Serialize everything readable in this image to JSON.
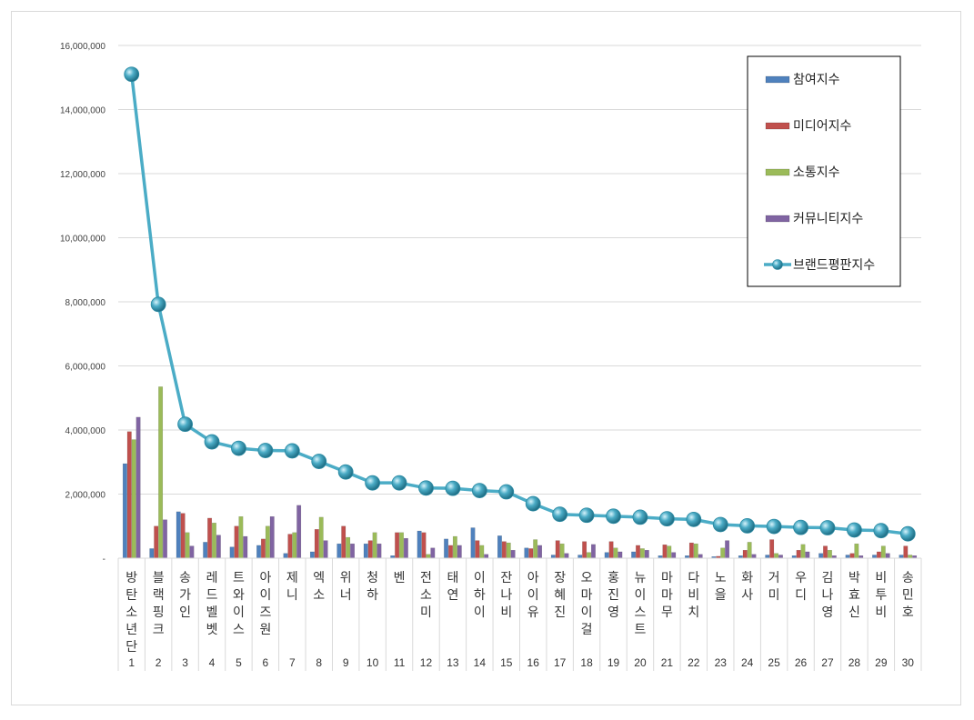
{
  "chart_data": {
    "type": "bar",
    "title": "",
    "xlabel": "",
    "ylabel": "",
    "ylim": [
      0,
      16000000
    ],
    "yticks": [
      {
        "value": 0,
        "label": "-"
      },
      {
        "value": 2000000,
        "label": "2,000,000"
      },
      {
        "value": 4000000,
        "label": "4,000,000"
      },
      {
        "value": 6000000,
        "label": "6,000,000"
      },
      {
        "value": 8000000,
        "label": "8,000,000"
      },
      {
        "value": 10000000,
        "label": "10,000,000"
      },
      {
        "value": 12000000,
        "label": "12,000,000"
      },
      {
        "value": 14000000,
        "label": "14,000,000"
      },
      {
        "value": 16000000,
        "label": "16,000,000"
      }
    ],
    "grid": true,
    "legend_position": "top-right",
    "categories": [
      "방탄소년단",
      "블랙핑크",
      "송가인",
      "레드벨벳",
      "트와이스",
      "아이즈원",
      "제니",
      "엑소",
      "위너",
      "청하",
      "벤",
      "전소미",
      "태연",
      "이하이",
      "잔나비",
      "아이유",
      "장혜진",
      "오마이걸",
      "홍진영",
      "뉴이스트",
      "마마무",
      "다비치",
      "노을",
      "화사",
      "거미",
      "우디",
      "김나영",
      "박효신",
      "비투비",
      "송민호"
    ],
    "ranks": [
      "1",
      "2",
      "3",
      "4",
      "5",
      "6",
      "7",
      "8",
      "9",
      "10",
      "11",
      "12",
      "13",
      "14",
      "15",
      "16",
      "17",
      "18",
      "19",
      "20",
      "21",
      "22",
      "23",
      "24",
      "25",
      "26",
      "27",
      "28",
      "29",
      "30"
    ],
    "series": [
      {
        "name": "참여지수",
        "kind": "bar",
        "color": "#4f81bd",
        "values": [
          2950000,
          300000,
          1450000,
          500000,
          350000,
          400000,
          150000,
          200000,
          450000,
          450000,
          80000,
          850000,
          600000,
          950000,
          700000,
          320000,
          100000,
          100000,
          180000,
          200000,
          80000,
          80000,
          50000,
          80000,
          100000,
          80000,
          150000,
          100000,
          100000,
          100000
        ]
      },
      {
        "name": "미디어지수",
        "kind": "bar",
        "color": "#c0504d",
        "values": [
          3950000,
          1000000,
          1400000,
          1250000,
          1000000,
          600000,
          750000,
          900000,
          1000000,
          550000,
          800000,
          800000,
          400000,
          550000,
          520000,
          300000,
          550000,
          520000,
          520000,
          400000,
          420000,
          480000,
          60000,
          250000,
          580000,
          250000,
          380000,
          150000,
          200000,
          380000
        ]
      },
      {
        "name": "소통지수",
        "kind": "bar",
        "color": "#9bbb59",
        "values": [
          3700000,
          5350000,
          800000,
          1100000,
          1300000,
          1000000,
          800000,
          1280000,
          650000,
          800000,
          800000,
          120000,
          680000,
          400000,
          480000,
          580000,
          450000,
          180000,
          320000,
          300000,
          380000,
          450000,
          320000,
          500000,
          150000,
          430000,
          250000,
          450000,
          380000,
          100000
        ]
      },
      {
        "name": "커뮤니티지수",
        "kind": "bar",
        "color": "#8064a2",
        "values": [
          4400000,
          1200000,
          380000,
          720000,
          680000,
          1300000,
          1650000,
          550000,
          450000,
          450000,
          620000,
          320000,
          400000,
          120000,
          250000,
          400000,
          150000,
          430000,
          200000,
          250000,
          180000,
          120000,
          550000,
          120000,
          100000,
          200000,
          80000,
          80000,
          150000,
          80000
        ]
      },
      {
        "name": "브랜드평판지수",
        "kind": "line",
        "color": "#4bacc6",
        "values": [
          15100000,
          7920000,
          4180000,
          3630000,
          3430000,
          3360000,
          3350000,
          3020000,
          2690000,
          2350000,
          2350000,
          2190000,
          2180000,
          2110000,
          2070000,
          1700000,
          1370000,
          1340000,
          1310000,
          1280000,
          1230000,
          1210000,
          1050000,
          1010000,
          990000,
          960000,
          950000,
          880000,
          860000,
          760000
        ]
      }
    ]
  }
}
